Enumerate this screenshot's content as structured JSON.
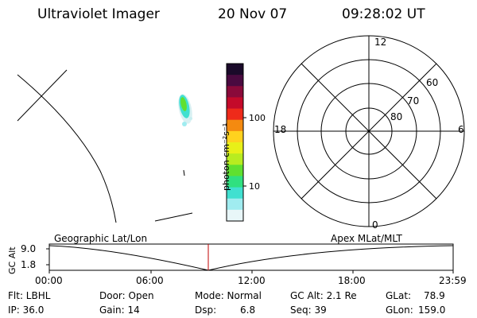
{
  "header": {
    "title": "Ultraviolet Imager",
    "date": "20 Nov 07",
    "time": "09:28:02 UT"
  },
  "colorbar": {
    "label": "photon cm⁻²s⁻¹",
    "ticks": [
      "100",
      "10"
    ],
    "colors": [
      "#1a0a2a",
      "#4a0a40",
      "#8a0a3a",
      "#c40a2a",
      "#ee2a1a",
      "#f48a10",
      "#ffd21e",
      "#e8f018",
      "#b8ec20",
      "#60e030",
      "#30e080",
      "#40e0d0",
      "#a0ecf0",
      "#e8f6f8"
    ]
  },
  "polar_plot": {
    "mlt_labels": {
      "top": "12",
      "left": "18",
      "right": "6",
      "bottom": "0"
    },
    "lat_labels": [
      "60",
      "70",
      "80"
    ]
  },
  "altitude_panel": {
    "y_axis_label": "GC Alt",
    "y_ticks": [
      "9.0",
      "1.8"
    ],
    "left_label": "Geographic Lat/Lon",
    "right_label": "Apex MLat/MLT",
    "x_ticks": [
      "00:00",
      "06:00",
      "12:00",
      "18:00",
      "23:59"
    ],
    "marker_color": "#c00000"
  },
  "status": {
    "flt": "Flt: LBHL",
    "ip": "IP: 36.0",
    "door": "Door: Open",
    "gain": "Gain: 14",
    "mode": "Mode: Normal",
    "dsp_label": "Dsp:",
    "dsp_value": "6.8",
    "gc_alt": "GC Alt: 2.1 Re",
    "seq": "Seq: 39",
    "glat_label": "GLat:",
    "glat_value": "78.9",
    "glon_label": "GLon:",
    "glon_value": "159.0"
  }
}
